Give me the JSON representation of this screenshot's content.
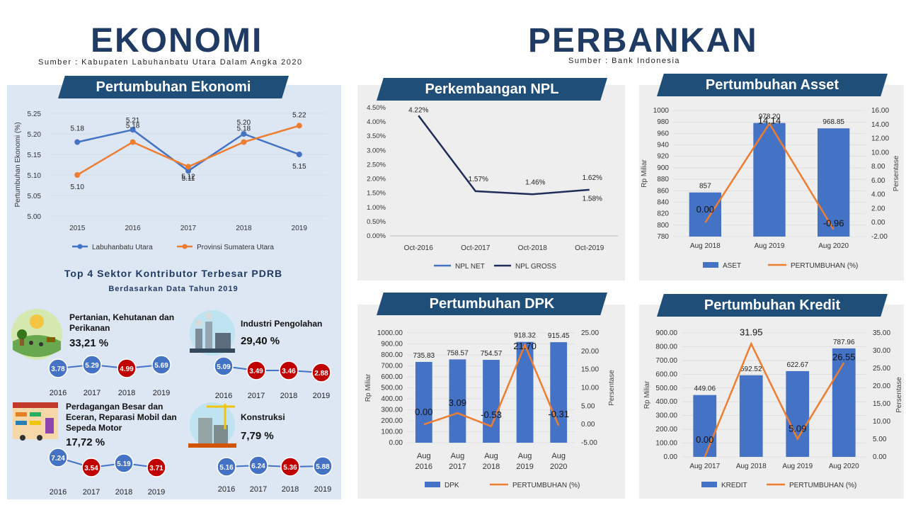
{
  "ekonomi": {
    "title": "EKONOMI",
    "source": "Sumber : Kabupaten Labuhanbatu Utara Dalam Angka 2020"
  },
  "perbankan": {
    "title": "PERBANKAN",
    "source": "Sumber : Bank Indonesia"
  },
  "growth_ribbon": "Pertumbuhan Ekonomi",
  "npl_ribbon": "Perkembangan NPL",
  "asset_ribbon": "Pertumbuhan Asset",
  "dpk_ribbon": "Pertumbuhan DPK",
  "kredit_ribbon": "Pertumbuhan Kredit",
  "top4": {
    "title": "Top 4 Sektor Kontributor Terbesar PDRB",
    "subtitle": "Berdasarkan Data Tahun 2019",
    "years": [
      "2016",
      "2017",
      "2018",
      "2019"
    ],
    "sectors": [
      {
        "name": "Pertanian, Kehutanan dan Perikanan",
        "share": "33,21 %",
        "values": [
          "3.78",
          "5.29",
          "4.99",
          "5.69"
        ],
        "colors": [
          "#4472c4",
          "#4472c4",
          "#c00000",
          "#4472c4"
        ]
      },
      {
        "name": "Industri Pengolahan",
        "share": "29,40 %",
        "values": [
          "5.09",
          "3.49",
          "3.46",
          "2.88"
        ],
        "colors": [
          "#4472c4",
          "#c00000",
          "#c00000",
          "#c00000"
        ]
      },
      {
        "name": "Perdagangan Besar dan Eceran, Reparasi Mobil dan Sepeda Motor",
        "share": "17,72 %",
        "values": [
          "7.24",
          "3.54",
          "5.19",
          "3.71"
        ],
        "colors": [
          "#4472c4",
          "#c00000",
          "#4472c4",
          "#c00000"
        ]
      },
      {
        "name": "Konstruksi",
        "share": "7,79 %",
        "values": [
          "5.16",
          "6.24",
          "5.36",
          "5.88"
        ],
        "colors": [
          "#4472c4",
          "#4472c4",
          "#c00000",
          "#4472c4"
        ]
      }
    ]
  },
  "chart_data": [
    {
      "id": "growth",
      "type": "line",
      "ylabel": "Pertumbuhan Ekonomi (%)",
      "categories": [
        "2015",
        "2016",
        "2017",
        "2018",
        "2019"
      ],
      "ylim": [
        5.0,
        5.25
      ],
      "yticks": [
        "5.00",
        "5.05",
        "5.10",
        "5.15",
        "5.20",
        "5.25"
      ],
      "series": [
        {
          "name": "Labuhanbatu Utara",
          "color": "#4472c4",
          "values": [
            5.18,
            5.21,
            5.11,
            5.2,
            5.15
          ],
          "labels": [
            "5.18",
            "5.21",
            "5.11",
            "5.20",
            "5.15"
          ]
        },
        {
          "name": "Provinsi Sumatera Utara",
          "color": "#ed7d31",
          "values": [
            5.1,
            5.18,
            5.12,
            5.18,
            5.22
          ],
          "labels": [
            "5.10",
            "5.18",
            "5.12",
            "5.18",
            "5.22"
          ]
        }
      ]
    },
    {
      "id": "npl",
      "type": "line",
      "categories": [
        "Oct-2016",
        "Oct-2017",
        "Oct-2018",
        "Oct-2019"
      ],
      "ylim": [
        0,
        4.5
      ],
      "yticks": [
        "0.00%",
        "0.50%",
        "1.00%",
        "1.50%",
        "2.00%",
        "2.50%",
        "3.00%",
        "3.50%",
        "4.00%",
        "4.50%"
      ],
      "series": [
        {
          "name": "NPL NET",
          "color": "#4472c4",
          "values": [
            null,
            null,
            null,
            1.58
          ],
          "labels": [
            "",
            "",
            "",
            "1.58%"
          ]
        },
        {
          "name": "NPL GROSS",
          "color": "#1f2d5a",
          "values": [
            4.22,
            1.57,
            1.46,
            1.62
          ],
          "labels": [
            "4.22%",
            "1.57%",
            "1.46%",
            "1.62%"
          ]
        }
      ]
    },
    {
      "id": "asset",
      "type": "bar",
      "ylabel": "Rp Miliar",
      "y2label": "Persentase",
      "categories": [
        "Aug 2018",
        "Aug 2019",
        "Aug 2020"
      ],
      "ylim": [
        780,
        1000
      ],
      "yticks": [
        "780",
        "800",
        "820",
        "840",
        "860",
        "880",
        "900",
        "920",
        "940",
        "960",
        "980",
        "1000"
      ],
      "y2lim": [
        -2,
        16
      ],
      "y2ticks": [
        "-2.00",
        "0.00",
        "2.00",
        "4.00",
        "6.00",
        "8.00",
        "10.00",
        "12.00",
        "14.00",
        "16.00"
      ],
      "series": [
        {
          "name": "ASET",
          "kind": "bar",
          "color": "#4472c4",
          "values": [
            857,
            978.2,
            968.85
          ],
          "labels": [
            "857",
            "978.20",
            "968.85"
          ]
        },
        {
          "name": "PERTUMBUHAN (%)",
          "kind": "line",
          "color": "#ed7d31",
          "values": [
            0.0,
            14.14,
            -0.96
          ],
          "labels": [
            "0.00",
            "14.14",
            "-0.96"
          ]
        }
      ]
    },
    {
      "id": "dpk",
      "type": "bar",
      "ylabel": "Rp Miliar",
      "y2label": "Persentase",
      "categories": [
        "Aug 2016",
        "Aug 2017",
        "Aug 2018",
        "Aug 2019",
        "Aug 2020"
      ],
      "ylim": [
        0,
        1000
      ],
      "yticks": [
        "0.00",
        "100.00",
        "200.00",
        "300.00",
        "400.00",
        "500.00",
        "600.00",
        "700.00",
        "800.00",
        "900.00",
        "1000.00"
      ],
      "y2lim": [
        -5,
        25
      ],
      "y2ticks": [
        "-5.00",
        "0.00",
        "5.00",
        "10.00",
        "15.00",
        "20.00",
        "25.00"
      ],
      "series": [
        {
          "name": "DPK",
          "kind": "bar",
          "color": "#4472c4",
          "values": [
            735.83,
            758.57,
            754.57,
            918.32,
            915.45
          ],
          "labels": [
            "735.83",
            "758.57",
            "754.57",
            "918.32",
            "915.45"
          ]
        },
        {
          "name": "PERTUMBUHAN (%)",
          "kind": "line",
          "color": "#ed7d31",
          "values": [
            0.0,
            3.09,
            -0.53,
            21.7,
            -0.31
          ],
          "labels": [
            "0.00",
            "3.09",
            "-0.53",
            "21.70",
            "-0.31"
          ]
        }
      ]
    },
    {
      "id": "kredit",
      "type": "bar",
      "ylabel": "Rp Miliar",
      "y2label": "Persentase",
      "categories": [
        "Aug 2017",
        "Aug 2018",
        "Aug 2019",
        "Aug 2020"
      ],
      "ylim": [
        0,
        900
      ],
      "yticks": [
        "0.00",
        "100.00",
        "200.00",
        "300.00",
        "400.00",
        "500.00",
        "600.00",
        "700.00",
        "800.00",
        "900.00"
      ],
      "y2lim": [
        0,
        35
      ],
      "y2ticks": [
        "0.00",
        "5.00",
        "10.00",
        "15.00",
        "20.00",
        "25.00",
        "30.00",
        "35.00"
      ],
      "series": [
        {
          "name": "KREDIT",
          "kind": "bar",
          "color": "#4472c4",
          "values": [
            449.06,
            592.52,
            622.67,
            787.96
          ],
          "labels": [
            "449.06",
            "592.52",
            "622.67",
            "787.96"
          ]
        },
        {
          "name": "PERTUMBUHAN (%)",
          "kind": "line",
          "color": "#ed7d31",
          "values": [
            0.0,
            31.95,
            5.09,
            26.55
          ],
          "labels": [
            "0.00",
            "31.95",
            "5.09",
            "26.55"
          ]
        }
      ]
    }
  ]
}
